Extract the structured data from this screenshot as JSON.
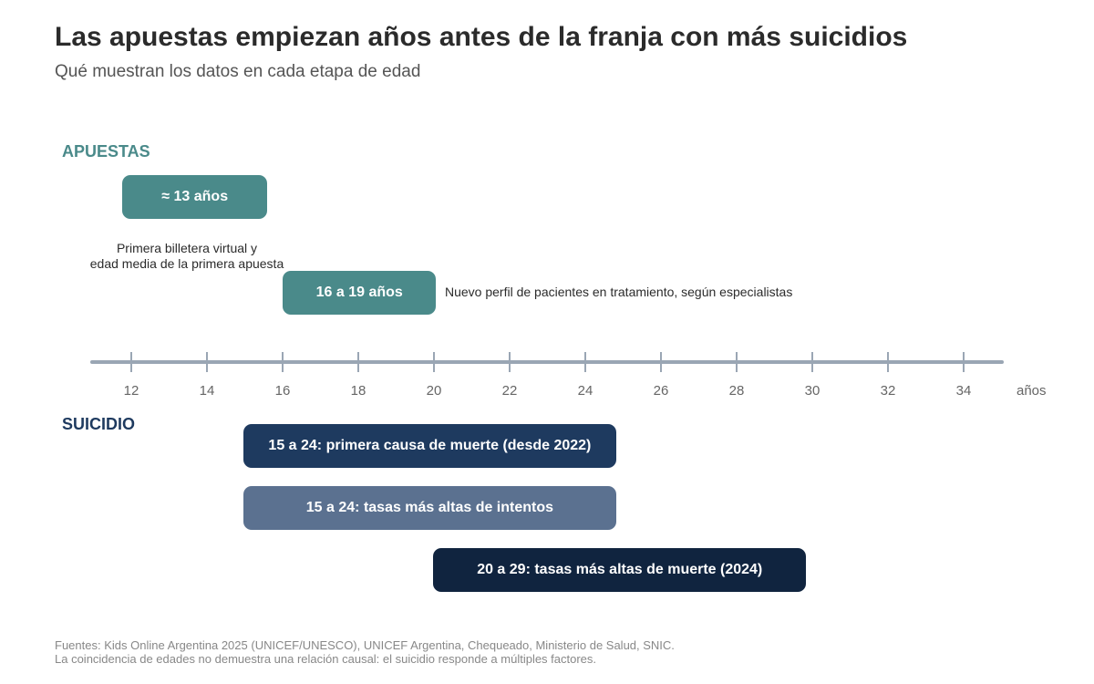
{
  "title": "Las apuestas empiezan años antes de la franja con más suicidios",
  "subtitle": "Qué muestran los datos en cada etapa de edad",
  "sections": {
    "gambling": {
      "label": "APUESTAS",
      "color": "#4a8a8a",
      "items": [
        {
          "label": "≈ 13 años",
          "start": 12,
          "end": 15.5,
          "color": "#4a8a8a",
          "note_lines": [
            "Primera billetera virtual y",
            "edad media de la primera apuesta"
          ]
        },
        {
          "label": "16 a 19 años",
          "start": 16,
          "end": 19.8,
          "color": "#4a8a8a",
          "note_lines": [
            "Nuevo perfil de pacientes en tratamiento, según especialistas"
          ]
        }
      ]
    },
    "suicide": {
      "label": "SUICIDIO",
      "color": "#1e3a5f",
      "items": [
        {
          "label": "15 a 24: primera causa de muerte (desde 2022)",
          "start": 15,
          "end": 24.8,
          "color": "#1e3a5f"
        },
        {
          "label": "15 a 24: tasas más altas de intentos",
          "start": 15,
          "end": 24.8,
          "color": "#5b7190"
        },
        {
          "label": "20 a 29: tasas más altas de muerte (2024)",
          "start": 20,
          "end": 29.8,
          "color": "#10243f"
        }
      ]
    }
  },
  "axis": {
    "ticks": [
      "12",
      "14",
      "16",
      "18",
      "20",
      "22",
      "24",
      "26",
      "28",
      "30",
      "32",
      "34"
    ],
    "unit": "años",
    "color": "#9aa6b4"
  },
  "footer": {
    "line1": "Fuentes: Kids Online Argentina 2025 (UNICEF/UNESCO), UNICEF Argentina, Chequeado, Ministerio de Salud, SNIC.",
    "line2": "La coincidencia de edades no demuestra una relación causal: el suicidio responde a múltiples factores."
  }
}
